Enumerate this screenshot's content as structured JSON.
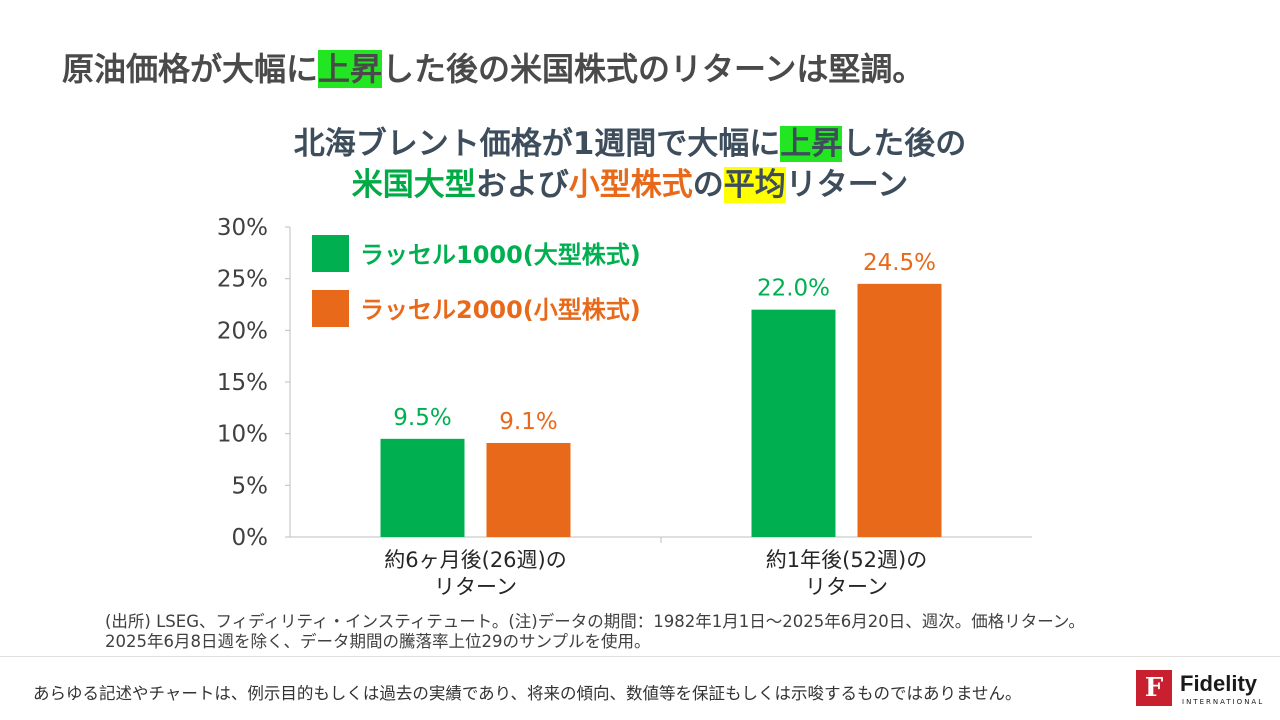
{
  "headline": {
    "pre": "原油価格が大幅に",
    "highlight": "上昇",
    "post": "した後の米国株式のリターンは堅調。"
  },
  "chart_title": {
    "line1_pre": "北海ブレント価格が1週間で大幅に",
    "line1_highlight": "上昇",
    "line1_post": "した後の",
    "line2_large": "米国大型",
    "line2_and": "および",
    "line2_small": "小型株式",
    "line2_no": "の",
    "line2_avg": "平均",
    "line2_post": "リターン"
  },
  "colors": {
    "green": "#00b050",
    "orange": "#e8691a",
    "highlight_green": "#22e622",
    "highlight_yellow": "#ffff00"
  },
  "chart_data": {
    "type": "bar",
    "categories": [
      [
        "約6ヶ月後(26週)の",
        "リターン"
      ],
      [
        "約1年後(52週)の",
        "リターン"
      ]
    ],
    "series": [
      {
        "name": "ラッセル1000(大型株式)",
        "values": [
          9.5,
          22.0
        ],
        "labels": [
          "9.5%",
          "22.0%"
        ]
      },
      {
        "name": "ラッセル2000(小型株式)",
        "values": [
          9.1,
          24.5
        ],
        "labels": [
          "9.1%",
          "24.5%"
        ]
      }
    ],
    "yticks": [
      "0%",
      "5%",
      "10%",
      "15%",
      "20%",
      "25%",
      "30%"
    ],
    "ylim": [
      0,
      30
    ],
    "legend_position": "top-left",
    "grid": false
  },
  "source_note": {
    "line1": "(出所) LSEG、フィディリティ・インスティテュート。(注)データの期間：1982年1月1日～2025年6月20日、週次。価格リターン。",
    "line2": "2025年6月8日週を除く、データ期間の騰落率上位29のサンプルを使用。"
  },
  "disclaimer": "あらゆる記述やチャートは、例示目的もしくは過去の実績であり、将来の傾向、数値等を保証もしくは示唆するものではありません。",
  "logo": {
    "mark": "F",
    "name": "Fidelity",
    "sub": "INTERNATIONAL"
  }
}
